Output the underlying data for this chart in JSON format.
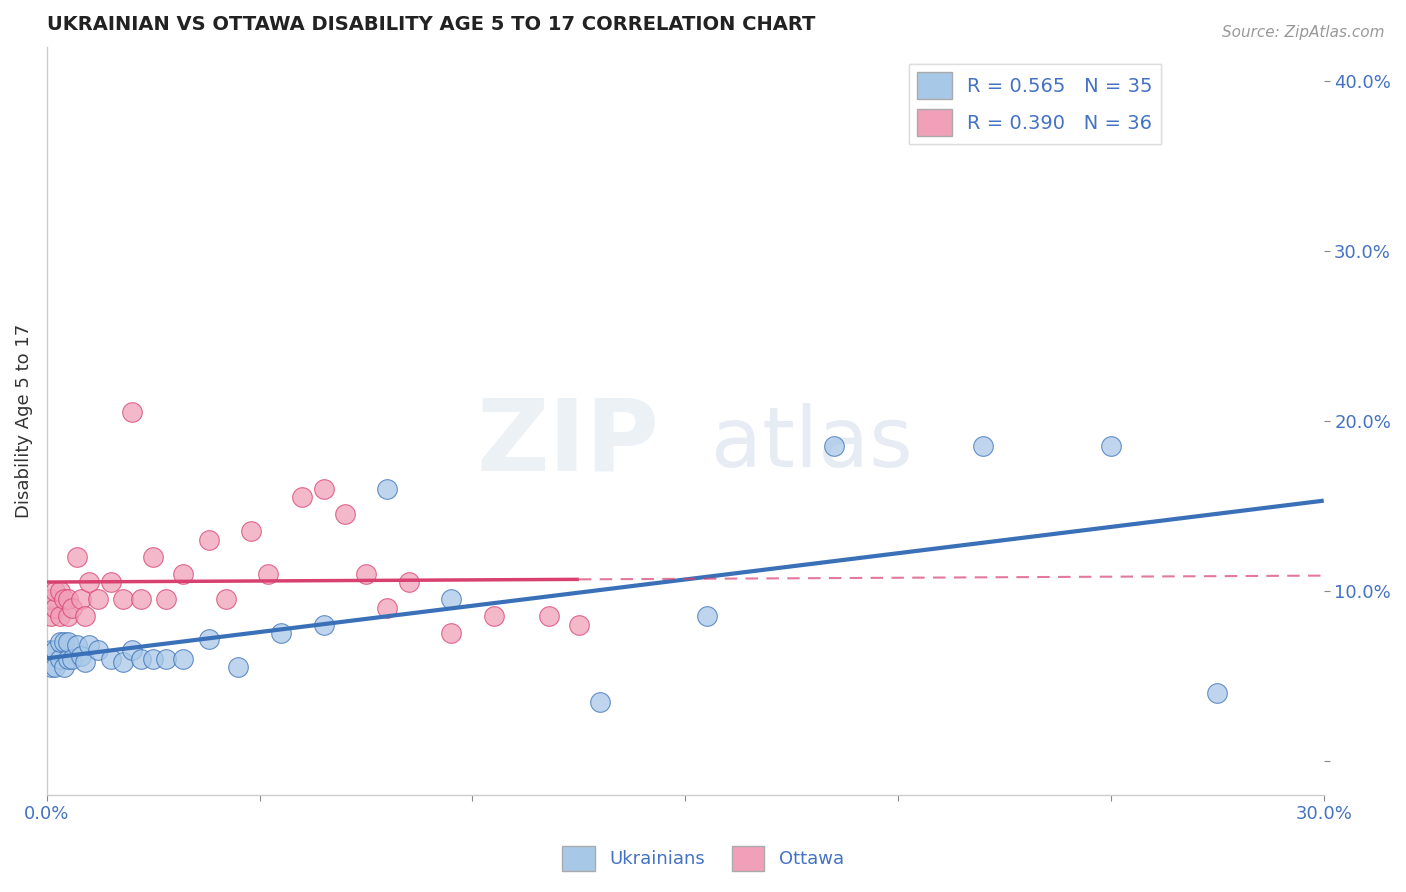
{
  "title": "UKRAINIAN VS OTTAWA DISABILITY AGE 5 TO 17 CORRELATION CHART",
  "source": "Source: ZipAtlas.com",
  "ylabel": "Disability Age 5 to 17",
  "xlim": [
    0.0,
    0.3
  ],
  "ylim": [
    -0.02,
    0.42
  ],
  "right_yticks": [
    0.0,
    0.1,
    0.2,
    0.3,
    0.4
  ],
  "right_yticklabels": [
    "",
    "10.0%",
    "20.0%",
    "30.0%",
    "40.0%"
  ],
  "xticks": [
    0.0,
    0.05,
    0.1,
    0.15,
    0.2,
    0.25,
    0.3
  ],
  "xticklabels": [
    "0.0%",
    "",
    "",
    "",
    "",
    "",
    "30.0%"
  ],
  "legend_r1": "R = 0.565   N = 35",
  "legend_r2": "R = 0.390   N = 36",
  "legend_label1": "Ukrainians",
  "legend_label2": "Ottawa",
  "color_blue": "#a8c8e8",
  "color_blue_dark": "#3a70b8",
  "color_pink": "#f0a0b8",
  "color_pink_dark": "#d84070",
  "watermark_zip": "ZIP",
  "watermark_atlas": "atlas",
  "background_color": "#ffffff",
  "grid_color": "#cccccc",
  "blue_x": [
    0.001,
    0.001,
    0.002,
    0.002,
    0.003,
    0.003,
    0.004,
    0.004,
    0.005,
    0.005,
    0.006,
    0.007,
    0.008,
    0.009,
    0.01,
    0.012,
    0.015,
    0.018,
    0.02,
    0.022,
    0.025,
    0.028,
    0.032,
    0.038,
    0.045,
    0.055,
    0.065,
    0.08,
    0.095,
    0.13,
    0.155,
    0.185,
    0.22,
    0.25,
    0.275
  ],
  "blue_y": [
    0.055,
    0.065,
    0.055,
    0.065,
    0.06,
    0.07,
    0.055,
    0.07,
    0.06,
    0.07,
    0.06,
    0.068,
    0.062,
    0.058,
    0.068,
    0.065,
    0.06,
    0.058,
    0.065,
    0.06,
    0.06,
    0.06,
    0.06,
    0.072,
    0.055,
    0.075,
    0.08,
    0.16,
    0.095,
    0.035,
    0.085,
    0.185,
    0.185,
    0.185,
    0.04
  ],
  "pink_x": [
    0.001,
    0.001,
    0.002,
    0.002,
    0.003,
    0.003,
    0.004,
    0.005,
    0.005,
    0.006,
    0.007,
    0.008,
    0.009,
    0.01,
    0.012,
    0.015,
    0.018,
    0.02,
    0.022,
    0.025,
    0.028,
    0.032,
    0.038,
    0.042,
    0.048,
    0.052,
    0.06,
    0.065,
    0.07,
    0.075,
    0.08,
    0.085,
    0.095,
    0.105,
    0.118,
    0.125
  ],
  "pink_y": [
    0.085,
    0.095,
    0.09,
    0.1,
    0.085,
    0.1,
    0.095,
    0.085,
    0.095,
    0.09,
    0.12,
    0.095,
    0.085,
    0.105,
    0.095,
    0.105,
    0.095,
    0.205,
    0.095,
    0.12,
    0.095,
    0.11,
    0.13,
    0.095,
    0.135,
    0.11,
    0.155,
    0.16,
    0.145,
    0.11,
    0.09,
    0.105,
    0.075,
    0.085,
    0.085,
    0.08
  ]
}
